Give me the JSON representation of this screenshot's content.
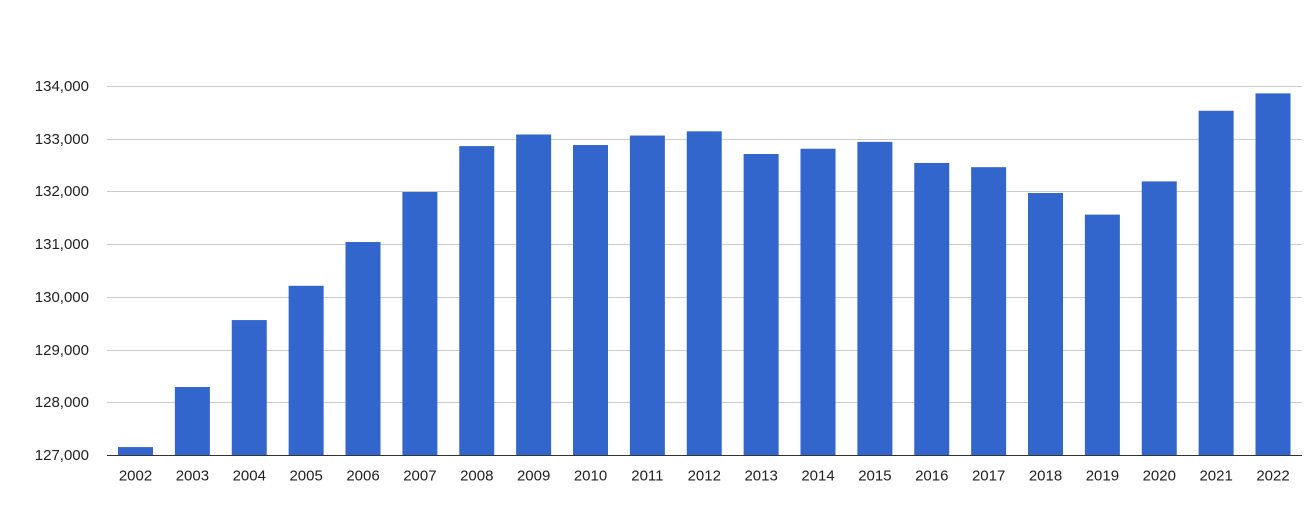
{
  "chart_data": {
    "type": "bar",
    "title": "",
    "xlabel": "",
    "ylabel": "",
    "grid": true,
    "legend": "none",
    "categories": [
      "2002",
      "2003",
      "2004",
      "2005",
      "2006",
      "2007",
      "2008",
      "2009",
      "2010",
      "2011",
      "2012",
      "2013",
      "2014",
      "2015",
      "2016",
      "2017",
      "2018",
      "2019",
      "2020",
      "2021",
      "2022"
    ],
    "values": [
      127150,
      128290,
      129560,
      130210,
      131040,
      131990,
      132860,
      133080,
      132880,
      133060,
      133140,
      132710,
      132810,
      132940,
      132540,
      132460,
      131970,
      131560,
      132190,
      133530,
      133860
    ],
    "ylim": [
      127000,
      134000
    ],
    "yticks": [
      127000,
      128000,
      129000,
      130000,
      131000,
      132000,
      133000,
      134000
    ],
    "ytick_labels": [
      "127,000",
      "128,000",
      "129,000",
      "130,000",
      "131,000",
      "132,000",
      "133,000",
      "134,000"
    ]
  },
  "colors": {
    "bar": "#3366cc",
    "grid": "#cccccc",
    "baseline": "#333333",
    "text": "#222222"
  }
}
